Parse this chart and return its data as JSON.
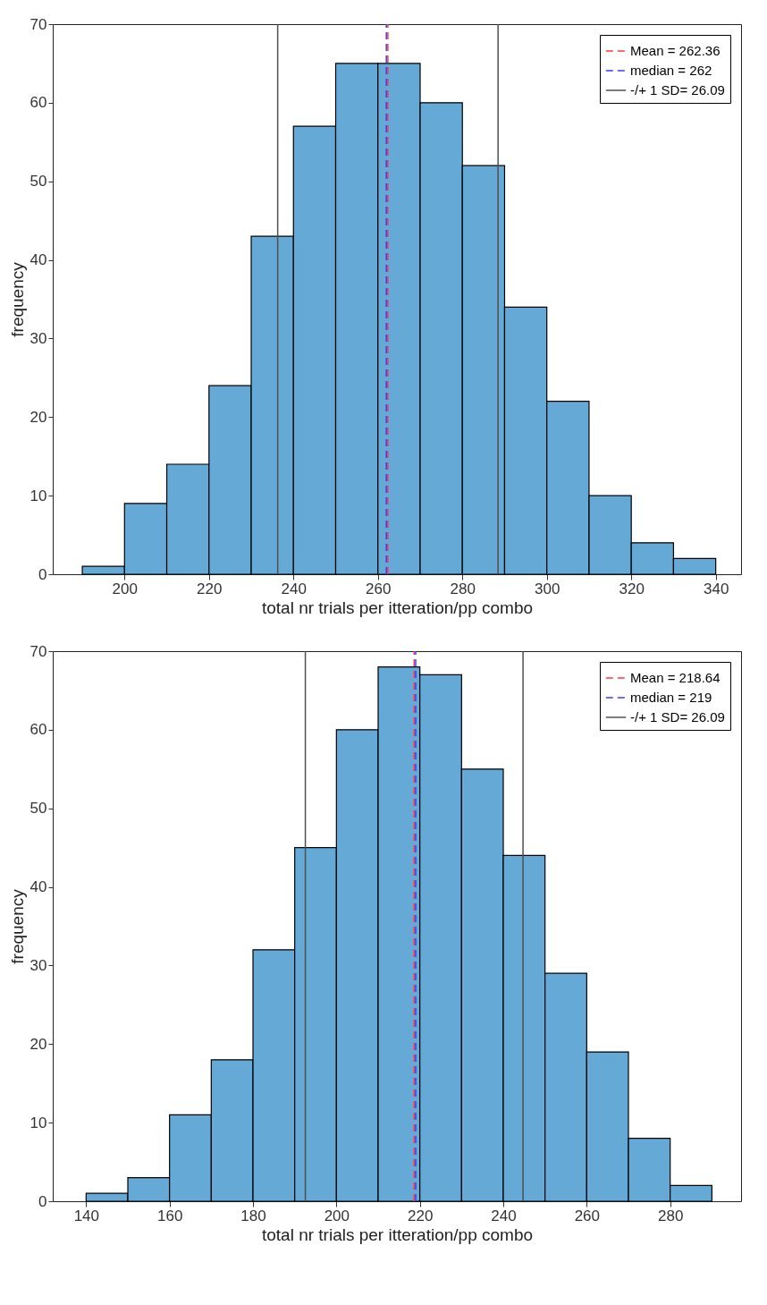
{
  "chart_data": [
    {
      "type": "histogram",
      "xlabel": "total nr trials per itteration/pp combo",
      "ylabel": "frequency",
      "bins": [
        190,
        200,
        210,
        220,
        230,
        240,
        250,
        260,
        270,
        280,
        290,
        300,
        310,
        320,
        330,
        340
      ],
      "values": [
        1,
        9,
        14,
        24,
        43,
        57,
        65,
        65,
        60,
        52,
        34,
        22,
        10,
        4,
        2
      ],
      "color": "#65a9d7",
      "xlim": [
        183,
        346
      ],
      "xticks": [
        200,
        220,
        240,
        260,
        280,
        300,
        320,
        340
      ],
      "ylim": [
        0,
        70
      ],
      "yticks": [
        0,
        10,
        20,
        30,
        40,
        50,
        60,
        70
      ],
      "legend": "top right",
      "series": [
        {
          "type": "line",
          "name": "Mean = 262.36",
          "color": "#ff3b3b",
          "line_style": "dashed",
          "x": [
            262.36,
            262.36
          ],
          "values": [
            0,
            70
          ]
        },
        {
          "type": "line",
          "name": "median = 262",
          "color": "#3b3bff",
          "line_style": "dashed",
          "x": [
            262,
            262
          ],
          "values": [
            0,
            70
          ]
        },
        {
          "type": "line",
          "name": "-/+ 1 SD= 26.09",
          "color": "#505050",
          "line_style": "solid",
          "x": [
            236.27,
            236.27,
            null,
            288.45,
            288.45
          ],
          "values": [
            0,
            70,
            null,
            0,
            70
          ]
        }
      ]
    },
    {
      "type": "histogram",
      "xlabel": "total nr trials per itteration/pp combo",
      "ylabel": "frequency",
      "bins": [
        140,
        150,
        160,
        170,
        180,
        190,
        200,
        210,
        220,
        230,
        240,
        250,
        260,
        270,
        280,
        290
      ],
      "values": [
        1,
        3,
        11,
        18,
        32,
        45,
        60,
        68,
        67,
        55,
        44,
        29,
        19,
        8,
        2
      ],
      "color": "#65a9d7",
      "xlim": [
        132,
        297
      ],
      "xticks": [
        140,
        160,
        180,
        200,
        220,
        240,
        260,
        280
      ],
      "ylim": [
        0,
        70
      ],
      "yticks": [
        0,
        10,
        20,
        30,
        40,
        50,
        60,
        70
      ],
      "legend": "top right",
      "series": [
        {
          "type": "line",
          "name": "Mean = 218.64",
          "color": "#ff3b3b",
          "line_style": "dashed",
          "x": [
            218.64,
            218.64
          ],
          "values": [
            0,
            70
          ]
        },
        {
          "type": "line",
          "name": "median = 219",
          "color": "#3b3bff",
          "line_style": "dashed",
          "x": [
            219,
            219
          ],
          "values": [
            0,
            70
          ]
        },
        {
          "type": "line",
          "name": "-/+ 1 SD= 26.09",
          "color": "#505050",
          "line_style": "solid",
          "x": [
            192.55,
            192.55,
            null,
            244.73,
            244.73
          ],
          "values": [
            0,
            70,
            null,
            0,
            70
          ]
        }
      ]
    }
  ]
}
